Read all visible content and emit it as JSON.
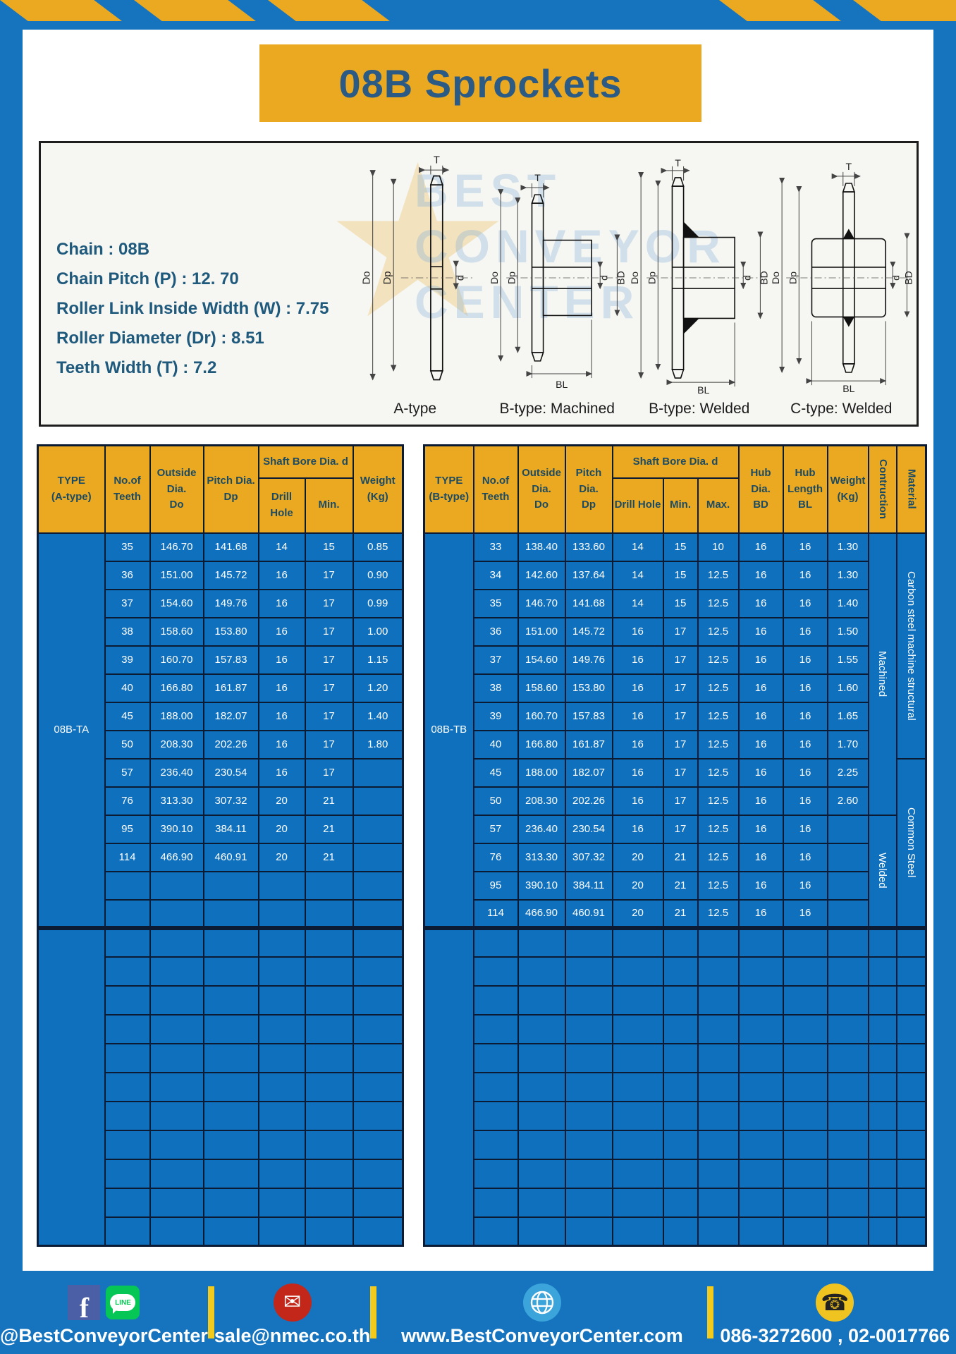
{
  "title": "08B Sprockets",
  "specs": {
    "lines": [
      "Chain : 08B",
      "Chain Pitch (P) : 12. 70",
      "Roller Link Inside Width (W) : 7.75",
      "Roller Diameter (Dr) : 8.51",
      "Teeth Width (T) : 7.2"
    ]
  },
  "watermark": {
    "text": "BEST\nCONVEYOR\nCENTER",
    "star": "★"
  },
  "diagram_labels": {
    "T": "T",
    "Do": "Do",
    "Dp": "Dp",
    "d": "d",
    "BD": "BD",
    "BL": "BL"
  },
  "diagram_captions": {
    "a": "A-type",
    "b_machined": "B-type: Machined",
    "b_welded": "B-type: Welded",
    "c_welded": "C-type: Welded"
  },
  "left_table": {
    "headers": {
      "type": "TYPE\n(A-type)",
      "teeth": "No.of\nTeeth",
      "outside": "Outside\nDia.\nDo",
      "pitch": "Pitch Dia.\nDp",
      "shaft_bore": "Shaft Bore Dia. d",
      "drill": "Drill Hole",
      "min": "Min.",
      "weight": "Weight\n(Kg)"
    },
    "type_label": "08B-TA",
    "rows": [
      [
        "35",
        "146.70",
        "141.68",
        "14",
        "15",
        "0.85"
      ],
      [
        "36",
        "151.00",
        "145.72",
        "16",
        "17",
        "0.90"
      ],
      [
        "37",
        "154.60",
        "149.76",
        "16",
        "17",
        "0.99"
      ],
      [
        "38",
        "158.60",
        "153.80",
        "16",
        "17",
        "1.00"
      ],
      [
        "39",
        "160.70",
        "157.83",
        "16",
        "17",
        "1.15"
      ],
      [
        "40",
        "166.80",
        "161.87",
        "16",
        "17",
        "1.20"
      ],
      [
        "45",
        "188.00",
        "182.07",
        "16",
        "17",
        "1.40"
      ],
      [
        "50",
        "208.30",
        "202.26",
        "16",
        "17",
        "1.80"
      ],
      [
        "57",
        "236.40",
        "230.54",
        "16",
        "17",
        ""
      ],
      [
        "76",
        "313.30",
        "307.32",
        "20",
        "21",
        ""
      ],
      [
        "95",
        "390.10",
        "384.11",
        "20",
        "21",
        ""
      ],
      [
        "114",
        "466.90",
        "460.91",
        "20",
        "21",
        ""
      ]
    ],
    "empty_rows_in_section1": 2,
    "section2_rows": 11
  },
  "right_table": {
    "headers": {
      "type": "TYPE\n(B-type)",
      "teeth": "No.of\nTeeth",
      "outside": "Outside\nDia.\nDo",
      "pitch": "Pitch Dia.\nDp",
      "shaft_bore": "Shaft Bore Dia. d",
      "drill": "Drill Hole",
      "min": "Min.",
      "max": "Max.",
      "hub_dia": "Hub Dia.\nBD",
      "hub_len": "Hub\nLength\nBL",
      "weight": "Weight\n(Kg)",
      "construction": "Contruction",
      "material": "Material"
    },
    "type_label": "08B-TB",
    "rows": [
      [
        "33",
        "138.40",
        "133.60",
        "14",
        "15",
        "10",
        "16",
        "16",
        "1.30"
      ],
      [
        "34",
        "142.60",
        "137.64",
        "14",
        "15",
        "12.5",
        "16",
        "16",
        "1.30"
      ],
      [
        "35",
        "146.70",
        "141.68",
        "14",
        "15",
        "12.5",
        "16",
        "16",
        "1.40"
      ],
      [
        "36",
        "151.00",
        "145.72",
        "16",
        "17",
        "12.5",
        "16",
        "16",
        "1.50"
      ],
      [
        "37",
        "154.60",
        "149.76",
        "16",
        "17",
        "12.5",
        "16",
        "16",
        "1.55"
      ],
      [
        "38",
        "158.60",
        "153.80",
        "16",
        "17",
        "12.5",
        "16",
        "16",
        "1.60"
      ],
      [
        "39",
        "160.70",
        "157.83",
        "16",
        "17",
        "12.5",
        "16",
        "16",
        "1.65"
      ],
      [
        "40",
        "166.80",
        "161.87",
        "16",
        "17",
        "12.5",
        "16",
        "16",
        "1.70"
      ],
      [
        "45",
        "188.00",
        "182.07",
        "16",
        "17",
        "12.5",
        "16",
        "16",
        "2.25"
      ],
      [
        "50",
        "208.30",
        "202.26",
        "16",
        "17",
        "12.5",
        "16",
        "16",
        "2.60"
      ],
      [
        "57",
        "236.40",
        "230.54",
        "16",
        "17",
        "12.5",
        "16",
        "16",
        ""
      ],
      [
        "76",
        "313.30",
        "307.32",
        "20",
        "21",
        "12.5",
        "16",
        "16",
        ""
      ],
      [
        "95",
        "390.10",
        "384.11",
        "20",
        "21",
        "12.5",
        "16",
        "16",
        ""
      ],
      [
        "114",
        "466.90",
        "460.91",
        "20",
        "21",
        "12.5",
        "16",
        "16",
        ""
      ]
    ],
    "construction_spans": [
      {
        "label": "Machined",
        "span": 10
      },
      {
        "label": "Welded",
        "span": 4
      }
    ],
    "material_spans": [
      {
        "label": "Carbon steel  machine structural",
        "span": 8
      },
      {
        "label": "Common Steel",
        "span": 6
      }
    ],
    "section2_rows": 11
  },
  "footer": {
    "social_label": "@BestConveyorCenter",
    "email_label": "sale@nmec.co.th",
    "website_label": "www.BestConveyorCenter.com",
    "phone_label": "086-3272600 , 02-0017766",
    "fb_letter": "f",
    "line_text": "LINE",
    "mail_glyph": "✉",
    "phone_glyph": "☎"
  },
  "colors": {
    "frame_blue": "#1673BE",
    "table_blue": "#0F70BE",
    "header_yellow": "#EBA922",
    "divider_yellow": "#F2CB1D",
    "border_dark": "#0B1B33",
    "title_text": "#2B5A85",
    "spec_text": "#1F5A7D"
  }
}
